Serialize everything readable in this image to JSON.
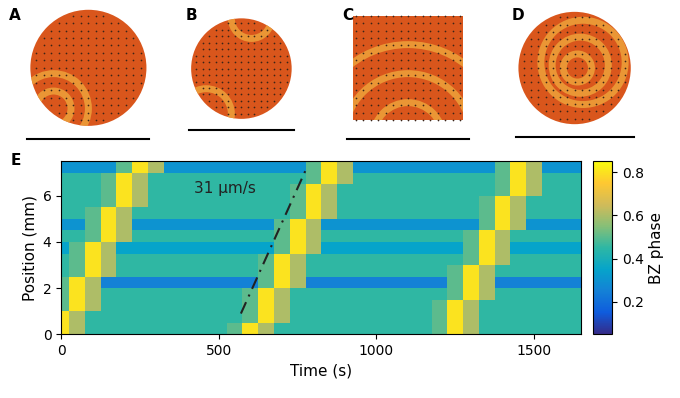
{
  "panel_labels": [
    "A",
    "B",
    "C",
    "D",
    "E"
  ],
  "chart_data": {
    "type": "heatmap",
    "x_label": "Time (s)",
    "y_label": "Position (mm)",
    "colorbar_label": "BZ phase",
    "x": [
      0,
      50,
      100,
      150,
      200,
      250,
      300,
      350,
      400,
      450,
      500,
      550,
      600,
      650,
      700,
      750,
      800,
      850,
      900,
      950,
      1000,
      1050,
      1100,
      1150,
      1200,
      1250,
      1300,
      1350,
      1400,
      1450,
      1500,
      1550,
      1600,
      1650
    ],
    "y": [
      0.25,
      0.75,
      1.25,
      1.75,
      2.25,
      2.75,
      3.25,
      3.75,
      4.25,
      4.75,
      5.25,
      5.75,
      6.25,
      6.75,
      7.25
    ],
    "cells": [
      [
        0.8,
        0.6,
        0.45,
        0.45,
        0.45,
        0.45,
        0.45,
        0.45,
        0.45,
        0.45,
        0.45,
        0.5,
        0.8,
        0.6,
        0.45,
        0.45,
        0.45,
        0.45,
        0.45,
        0.45,
        0.45,
        0.45,
        0.45,
        0.45,
        0.5,
        0.8,
        0.6,
        0.45,
        0.45,
        0.45,
        0.45,
        0.45,
        0.45,
        0.45
      ],
      [
        0.8,
        0.6,
        0.45,
        0.45,
        0.45,
        0.45,
        0.45,
        0.45,
        0.45,
        0.45,
        0.45,
        0.45,
        0.5,
        0.8,
        0.6,
        0.45,
        0.45,
        0.45,
        0.45,
        0.45,
        0.45,
        0.45,
        0.45,
        0.45,
        0.5,
        0.8,
        0.6,
        0.45,
        0.45,
        0.45,
        0.45,
        0.45,
        0.45,
        0.45
      ],
      [
        0.5,
        0.8,
        0.6,
        0.45,
        0.45,
        0.45,
        0.45,
        0.45,
        0.45,
        0.45,
        0.45,
        0.45,
        0.5,
        0.8,
        0.6,
        0.45,
        0.45,
        0.45,
        0.45,
        0.45,
        0.45,
        0.45,
        0.45,
        0.45,
        0.5,
        0.8,
        0.6,
        0.45,
        0.45,
        0.45,
        0.45,
        0.45,
        0.45,
        0.45
      ],
      [
        0.5,
        0.8,
        0.6,
        0.45,
        0.45,
        0.45,
        0.45,
        0.45,
        0.45,
        0.45,
        0.45,
        0.45,
        0.5,
        0.8,
        0.6,
        0.45,
        0.45,
        0.45,
        0.45,
        0.45,
        0.45,
        0.45,
        0.45,
        0.45,
        0.45,
        0.5,
        0.8,
        0.6,
        0.45,
        0.45,
        0.45,
        0.45,
        0.45,
        0.45
      ],
      [
        0.5,
        0.8,
        0.6,
        0.25,
        0.25,
        0.25,
        0.25,
        0.25,
        0.25,
        0.25,
        0.25,
        0.25,
        0.25,
        0.5,
        0.8,
        0.6,
        0.25,
        0.25,
        0.25,
        0.25,
        0.25,
        0.25,
        0.25,
        0.25,
        0.25,
        0.5,
        0.8,
        0.6,
        0.25,
        0.25,
        0.25,
        0.25,
        0.25,
        0.25
      ],
      [
        0.45,
        0.5,
        0.8,
        0.6,
        0.45,
        0.45,
        0.45,
        0.45,
        0.45,
        0.45,
        0.45,
        0.45,
        0.45,
        0.5,
        0.8,
        0.6,
        0.45,
        0.45,
        0.45,
        0.45,
        0.45,
        0.45,
        0.45,
        0.45,
        0.45,
        0.5,
        0.8,
        0.6,
        0.45,
        0.45,
        0.45,
        0.45,
        0.45,
        0.45
      ],
      [
        0.45,
        0.5,
        0.8,
        0.6,
        0.45,
        0.45,
        0.45,
        0.45,
        0.45,
        0.45,
        0.45,
        0.45,
        0.45,
        0.5,
        0.8,
        0.6,
        0.45,
        0.45,
        0.45,
        0.45,
        0.45,
        0.45,
        0.45,
        0.45,
        0.45,
        0.45,
        0.5,
        0.8,
        0.6,
        0.45,
        0.45,
        0.45,
        0.45,
        0.45
      ],
      [
        0.35,
        0.5,
        0.8,
        0.6,
        0.35,
        0.35,
        0.35,
        0.35,
        0.35,
        0.35,
        0.35,
        0.35,
        0.35,
        0.35,
        0.5,
        0.8,
        0.6,
        0.35,
        0.35,
        0.35,
        0.35,
        0.35,
        0.35,
        0.35,
        0.35,
        0.35,
        0.5,
        0.8,
        0.6,
        0.35,
        0.35,
        0.35,
        0.35,
        0.35
      ],
      [
        0.45,
        0.45,
        0.5,
        0.8,
        0.6,
        0.45,
        0.45,
        0.45,
        0.45,
        0.45,
        0.45,
        0.45,
        0.45,
        0.45,
        0.5,
        0.8,
        0.6,
        0.45,
        0.45,
        0.45,
        0.45,
        0.45,
        0.45,
        0.45,
        0.45,
        0.45,
        0.5,
        0.8,
        0.6,
        0.45,
        0.45,
        0.45,
        0.45,
        0.45
      ],
      [
        0.3,
        0.3,
        0.5,
        0.8,
        0.6,
        0.3,
        0.3,
        0.3,
        0.3,
        0.3,
        0.3,
        0.3,
        0.3,
        0.3,
        0.5,
        0.8,
        0.6,
        0.3,
        0.3,
        0.3,
        0.3,
        0.3,
        0.3,
        0.3,
        0.3,
        0.3,
        0.3,
        0.5,
        0.8,
        0.6,
        0.3,
        0.3,
        0.3,
        0.3
      ],
      [
        0.45,
        0.45,
        0.5,
        0.8,
        0.6,
        0.45,
        0.45,
        0.45,
        0.45,
        0.45,
        0.45,
        0.45,
        0.45,
        0.45,
        0.45,
        0.5,
        0.8,
        0.6,
        0.45,
        0.45,
        0.45,
        0.45,
        0.45,
        0.45,
        0.45,
        0.45,
        0.45,
        0.5,
        0.8,
        0.6,
        0.45,
        0.45,
        0.45,
        0.45
      ],
      [
        0.45,
        0.45,
        0.45,
        0.5,
        0.8,
        0.6,
        0.45,
        0.45,
        0.45,
        0.45,
        0.45,
        0.45,
        0.45,
        0.45,
        0.45,
        0.5,
        0.8,
        0.6,
        0.45,
        0.45,
        0.45,
        0.45,
        0.45,
        0.45,
        0.45,
        0.45,
        0.45,
        0.5,
        0.8,
        0.6,
        0.45,
        0.45,
        0.45,
        0.45
      ],
      [
        0.45,
        0.45,
        0.45,
        0.5,
        0.8,
        0.6,
        0.45,
        0.45,
        0.45,
        0.45,
        0.45,
        0.45,
        0.45,
        0.45,
        0.45,
        0.5,
        0.8,
        0.6,
        0.45,
        0.45,
        0.45,
        0.45,
        0.45,
        0.45,
        0.45,
        0.45,
        0.45,
        0.45,
        0.5,
        0.8,
        0.6,
        0.45,
        0.45,
        0.45
      ],
      [
        0.45,
        0.45,
        0.45,
        0.5,
        0.8,
        0.6,
        0.45,
        0.45,
        0.45,
        0.45,
        0.45,
        0.45,
        0.45,
        0.45,
        0.45,
        0.45,
        0.5,
        0.8,
        0.6,
        0.45,
        0.45,
        0.45,
        0.45,
        0.45,
        0.45,
        0.45,
        0.45,
        0.45,
        0.5,
        0.8,
        0.6,
        0.45,
        0.45,
        0.45
      ],
      [
        0.3,
        0.3,
        0.3,
        0.3,
        0.5,
        0.8,
        0.6,
        0.3,
        0.3,
        0.3,
        0.3,
        0.3,
        0.3,
        0.3,
        0.3,
        0.3,
        0.5,
        0.8,
        0.6,
        0.3,
        0.3,
        0.3,
        0.3,
        0.3,
        0.3,
        0.3,
        0.3,
        0.3,
        0.5,
        0.8,
        0.6,
        0.3,
        0.3,
        0.3
      ]
    ],
    "xlim": [
      0,
      1650
    ],
    "xticks": [
      0,
      500,
      1000,
      1500
    ],
    "ylim": [
      0,
      7.5
    ],
    "yticks": [
      0,
      2,
      4,
      6
    ],
    "colorbar_range": [
      0.05,
      0.85
    ],
    "colorbar_ticks": [
      0.2,
      0.4,
      0.6,
      0.8
    ],
    "annotation": {
      "text": "31 μm/s",
      "x": 420,
      "y": 6.3,
      "line": {
        "x": [
          570,
          775
        ],
        "y": [
          0.9,
          7.1
        ]
      }
    }
  }
}
